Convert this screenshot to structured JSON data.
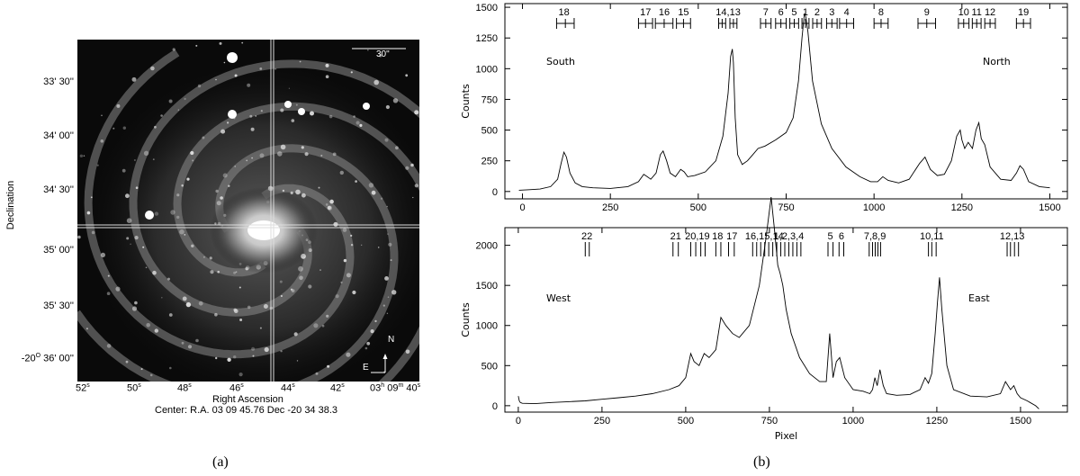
{
  "panel_a": {
    "caption": "(a)",
    "ylabel": "Declination",
    "xlabel": "Right Ascension",
    "center_line": "Center:  R.A. 03 09 45.76    Dec  -20 34 38.3",
    "scale_bar": "30\"",
    "compass": {
      "north": "N",
      "east": "E"
    },
    "y_ticks": [
      "33' 30''",
      "34' 00''",
      "34' 30''",
      "35' 00''",
      "35' 30''"
    ],
    "y_tick_last": {
      "deg": "-20",
      "sup": "O",
      "rest": " 36' 00''"
    },
    "x_ticks": [
      {
        "num": "52",
        "sup": "s"
      },
      {
        "num": "50",
        "sup": "s"
      },
      {
        "num": "48",
        "sup": "s"
      },
      {
        "num": "46",
        "sup": "s"
      },
      {
        "num": "44",
        "sup": "s"
      },
      {
        "num": "42",
        "sup": "s"
      }
    ],
    "x_tick_last": {
      "a": "03",
      "asup": "h",
      "b": " 09",
      "bsup": "m",
      "c": " 40",
      "csup": "s"
    }
  },
  "panel_b": {
    "caption": "(b)"
  },
  "chart_data": [
    {
      "type": "line",
      "title": "",
      "xlabel": "",
      "ylabel": "Counts",
      "xlim": [
        -50,
        1550
      ],
      "ylim": [
        -60,
        1530
      ],
      "x_ticks": [
        0,
        250,
        500,
        750,
        1000,
        1250,
        1500
      ],
      "y_ticks": [
        0,
        250,
        500,
        750,
        1000,
        1250,
        1500
      ],
      "annotations": {
        "left": "South",
        "right": "North"
      },
      "aperture_labels": [
        {
          "text": "18",
          "x": 118
        },
        {
          "text": "17",
          "x": 350
        },
        {
          "text": "16",
          "x": 403
        },
        {
          "text": "15",
          "x": 458
        },
        {
          "text": "14,13",
          "x": 585
        },
        {
          "text": "7",
          "x": 692
        },
        {
          "text": "6",
          "x": 735
        },
        {
          "text": "5",
          "x": 773
        },
        {
          "text": "1",
          "x": 805
        },
        {
          "text": "2",
          "x": 838
        },
        {
          "text": "3",
          "x": 880
        },
        {
          "text": "4",
          "x": 922
        },
        {
          "text": "8",
          "x": 1020
        },
        {
          "text": "9",
          "x": 1150
        },
        {
          "text": "10",
          "x": 1255
        },
        {
          "text": "11",
          "x": 1292
        },
        {
          "text": "12",
          "x": 1330
        },
        {
          "text": "19",
          "x": 1425
        }
      ],
      "apertures": [
        {
          "x": 122,
          "w": 50
        },
        {
          "x": 350,
          "w": 40
        },
        {
          "x": 403,
          "w": 50
        },
        {
          "x": 458,
          "w": 40
        },
        {
          "x": 568,
          "w": 20
        },
        {
          "x": 600,
          "w": 20
        },
        {
          "x": 692,
          "w": 30
        },
        {
          "x": 735,
          "w": 30
        },
        {
          "x": 773,
          "w": 25
        },
        {
          "x": 805,
          "w": 20
        },
        {
          "x": 838,
          "w": 25
        },
        {
          "x": 880,
          "w": 30
        },
        {
          "x": 922,
          "w": 40
        },
        {
          "x": 1020,
          "w": 40
        },
        {
          "x": 1150,
          "w": 50
        },
        {
          "x": 1255,
          "w": 30
        },
        {
          "x": 1292,
          "w": 25
        },
        {
          "x": 1330,
          "w": 30
        },
        {
          "x": 1425,
          "w": 40
        }
      ],
      "series": [
        {
          "x": [
            -10,
            20,
            50,
            80,
            100,
            110,
            118,
            125,
            135,
            150,
            170,
            200,
            250,
            300,
            330,
            345,
            355,
            365,
            380,
            392,
            400,
            410,
            420,
            435,
            450,
            460,
            470,
            490,
            520,
            550,
            570,
            585,
            592,
            597,
            600,
            605,
            612,
            625,
            640,
            655,
            670,
            690,
            720,
            750,
            770,
            785,
            795,
            802,
            806,
            812,
            825,
            850,
            880,
            920,
            960,
            990,
            1010,
            1025,
            1040,
            1070,
            1100,
            1130,
            1145,
            1160,
            1180,
            1200,
            1220,
            1235,
            1245,
            1250,
            1258,
            1268,
            1280,
            1290,
            1298,
            1305,
            1315,
            1330,
            1360,
            1390,
            1405,
            1415,
            1425,
            1440,
            1470,
            1500
          ],
          "y": [
            10,
            15,
            20,
            40,
            100,
            230,
            320,
            280,
            150,
            70,
            40,
            30,
            25,
            40,
            80,
            140,
            120,
            100,
            150,
            300,
            330,
            250,
            150,
            120,
            180,
            160,
            120,
            130,
            160,
            250,
            450,
            800,
            1100,
            1160,
            1050,
            600,
            300,
            220,
            250,
            300,
            350,
            370,
            420,
            480,
            600,
            900,
            1250,
            1450,
            1420,
            1300,
            900,
            550,
            350,
            200,
            120,
            80,
            80,
            120,
            90,
            70,
            100,
            230,
            280,
            180,
            130,
            140,
            250,
            450,
            500,
            420,
            350,
            400,
            350,
            500,
            560,
            430,
            380,
            200,
            100,
            90,
            150,
            210,
            180,
            80,
            40,
            30
          ]
        }
      ]
    },
    {
      "type": "line",
      "title": "",
      "xlabel": "Pixel",
      "ylabel": "Counts",
      "xlim": [
        -40,
        1640
      ],
      "ylim": [
        -80,
        2220
      ],
      "x_ticks": [
        0,
        250,
        500,
        750,
        1000,
        1250,
        1500
      ],
      "y_ticks": [
        0,
        500,
        1000,
        1500,
        2000
      ],
      "annotations": {
        "left": "West",
        "right": "East"
      },
      "aperture_labels": [
        {
          "text": "22",
          "x": 205
        },
        {
          "text": "21",
          "x": 470
        },
        {
          "text": "20,19",
          "x": 535
        },
        {
          "text": "18",
          "x": 595
        },
        {
          "text": "17",
          "x": 638
        },
        {
          "text": "16,15,14",
          "x": 735
        },
        {
          "text": "1,2,3,4",
          "x": 808
        },
        {
          "text": "5",
          "x": 932
        },
        {
          "text": "6",
          "x": 965
        },
        {
          "text": "7,8,9",
          "x": 1065
        },
        {
          "text": "10,11",
          "x": 1235
        },
        {
          "text": "12,13",
          "x": 1475
        }
      ],
      "ticks": [
        200,
        212,
        462,
        478,
        515,
        530,
        545,
        558,
        590,
        605,
        628,
        645,
        700,
        712,
        724,
        736,
        748,
        760,
        772,
        784,
        796,
        808,
        820,
        832,
        844,
        925,
        940,
        958,
        972,
        1048,
        1058,
        1066,
        1074,
        1082,
        1225,
        1235,
        1248,
        1460,
        1470,
        1482,
        1494
      ],
      "series": [
        {
          "x": [
            0,
            3,
            6,
            12,
            50,
            100,
            150,
            200,
            250,
            300,
            350,
            400,
            450,
            480,
            500,
            515,
            525,
            540,
            555,
            570,
            590,
            605,
            620,
            640,
            660,
            690,
            720,
            740,
            755,
            765,
            775,
            782,
            790,
            800,
            815,
            840,
            870,
            900,
            920,
            930,
            940,
            950,
            960,
            975,
            1000,
            1030,
            1050,
            1058,
            1065,
            1072,
            1080,
            1090,
            1100,
            1130,
            1170,
            1200,
            1215,
            1225,
            1235,
            1245,
            1252,
            1258,
            1265,
            1280,
            1300,
            1350,
            1400,
            1440,
            1455,
            1470,
            1480,
            1490,
            1500,
            1520,
            1545,
            1555
          ],
          "y": [
            120,
            60,
            40,
            30,
            25,
            40,
            50,
            60,
            80,
            100,
            120,
            150,
            200,
            250,
            350,
            650,
            550,
            500,
            650,
            600,
            700,
            1100,
            1000,
            900,
            850,
            1000,
            1500,
            2100,
            2600,
            2200,
            1750,
            1650,
            1500,
            1200,
            900,
            600,
            400,
            300,
            300,
            900,
            350,
            550,
            600,
            350,
            200,
            180,
            150,
            200,
            350,
            250,
            450,
            250,
            150,
            130,
            140,
            200,
            350,
            280,
            400,
            900,
            1300,
            1600,
            1200,
            500,
            200,
            120,
            110,
            150,
            300,
            200,
            250,
            150,
            100,
            60,
            0,
            -40
          ]
        }
      ]
    }
  ]
}
